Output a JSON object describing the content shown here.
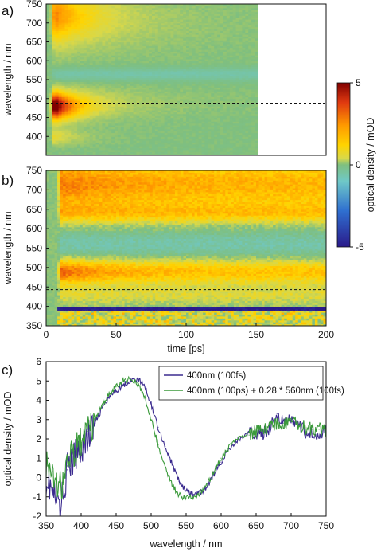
{
  "chart_data": [
    {
      "panel_label": "a)",
      "type": "heatmap",
      "xlim": [
        0,
        200
      ],
      "ylabel": "wavelength / nm",
      "ylim": [
        350,
        750
      ],
      "y_ticks": [
        750,
        700,
        650,
        600,
        550,
        500,
        450,
        400
      ],
      "data_extent_x": [
        0,
        150
      ],
      "dashed_line_wavelength": 488,
      "features": [
        {
          "band": "460-500 nm",
          "sign": "positive",
          "peak_mOD": 5,
          "decays_by_ps": 60
        },
        {
          "band": "640-750 nm",
          "sign": "positive",
          "peak_mOD": 3
        },
        {
          "band": "560 nm",
          "sign": "negative",
          "peak_mOD": -1
        }
      ]
    },
    {
      "panel_label": "b)",
      "type": "heatmap",
      "xlabel": "time [ps]",
      "xlim": [
        0,
        200
      ],
      "x_ticks": [
        0,
        50,
        100,
        150,
        200
      ],
      "ylabel": "wavelength / nm",
      "ylim": [
        350,
        750
      ],
      "y_ticks": [
        750,
        700,
        650,
        600,
        550,
        500,
        450,
        400,
        350
      ],
      "dashed_line_wavelength": 443,
      "features": [
        {
          "band": "470-510 nm",
          "sign": "positive",
          "peak_mOD": 3.5
        },
        {
          "band": "640-750 nm",
          "sign": "positive",
          "peak_mOD": 3
        },
        {
          "band": "540-580 nm",
          "sign": "negative",
          "peak_mOD": -0.8
        },
        {
          "band": "395 nm",
          "sign": "negative",
          "peak_mOD": -5
        }
      ]
    },
    {
      "type": "colorbar",
      "label": "optical density / mOD",
      "range": [
        -5,
        5
      ],
      "ticks": [
        5,
        0,
        -5
      ],
      "colors": [
        "#2a1a8a",
        "#2f6fd0",
        "#6fc8c8",
        "#7fbf7f",
        "#d8d84a",
        "#ffd400",
        "#ff9a00",
        "#e03a10",
        "#800000"
      ]
    },
    {
      "panel_label": "c)",
      "type": "line",
      "xlabel": "wavelength / nm",
      "ylabel": "optical density / mOD",
      "xlim": [
        350,
        750
      ],
      "ylim": [
        -2,
        6
      ],
      "x_ticks": [
        350,
        400,
        450,
        500,
        550,
        600,
        650,
        700,
        750
      ],
      "y_ticks": [
        -2,
        -1,
        0,
        1,
        2,
        3,
        4,
        5,
        6
      ],
      "legend_position": "top-right",
      "series": [
        {
          "name": "400nm (100fs)",
          "color": "#3b2b8f",
          "x": [
            350,
            360,
            370,
            380,
            390,
            400,
            410,
            420,
            430,
            440,
            450,
            460,
            470,
            480,
            490,
            500,
            510,
            520,
            530,
            540,
            550,
            560,
            570,
            580,
            590,
            600,
            610,
            620,
            630,
            640,
            650,
            660,
            670,
            680,
            690,
            700,
            710,
            720,
            730,
            740,
            750
          ],
          "values": [
            0.0,
            -0.9,
            -1.7,
            0.4,
            1.0,
            1.6,
            2.1,
            2.8,
            3.6,
            4.1,
            4.5,
            4.8,
            5.0,
            5.1,
            4.8,
            3.8,
            2.6,
            1.6,
            0.7,
            -0.2,
            -0.7,
            -0.9,
            -0.8,
            -0.5,
            0.2,
            0.8,
            1.4,
            1.8,
            2.1,
            2.3,
            2.3,
            2.3,
            2.6,
            3.3,
            2.8,
            3.0,
            2.7,
            2.4,
            2.3,
            2.3,
            2.4
          ]
        },
        {
          "name": "400nm (100ps) + 0.28 * 560nm (100fs)",
          "color": "#3a9a3a",
          "x": [
            350,
            360,
            370,
            380,
            390,
            400,
            410,
            420,
            430,
            440,
            450,
            460,
            470,
            480,
            490,
            500,
            510,
            520,
            530,
            540,
            550,
            560,
            570,
            580,
            590,
            600,
            610,
            620,
            630,
            640,
            650,
            660,
            670,
            680,
            690,
            700,
            710,
            720,
            730,
            740,
            750
          ],
          "values": [
            0.9,
            0.3,
            -0.5,
            0.6,
            1.4,
            1.8,
            2.4,
            3.0,
            3.7,
            4.3,
            4.7,
            5.0,
            5.1,
            4.9,
            4.2,
            3.0,
            1.7,
            0.5,
            -0.4,
            -0.9,
            -1.1,
            -1.0,
            -0.8,
            -0.4,
            0.3,
            1.0,
            1.5,
            1.9,
            2.1,
            2.2,
            2.4,
            2.5,
            2.6,
            2.8,
            2.8,
            2.9,
            2.8,
            2.6,
            2.5,
            2.5,
            2.4
          ]
        }
      ]
    }
  ]
}
